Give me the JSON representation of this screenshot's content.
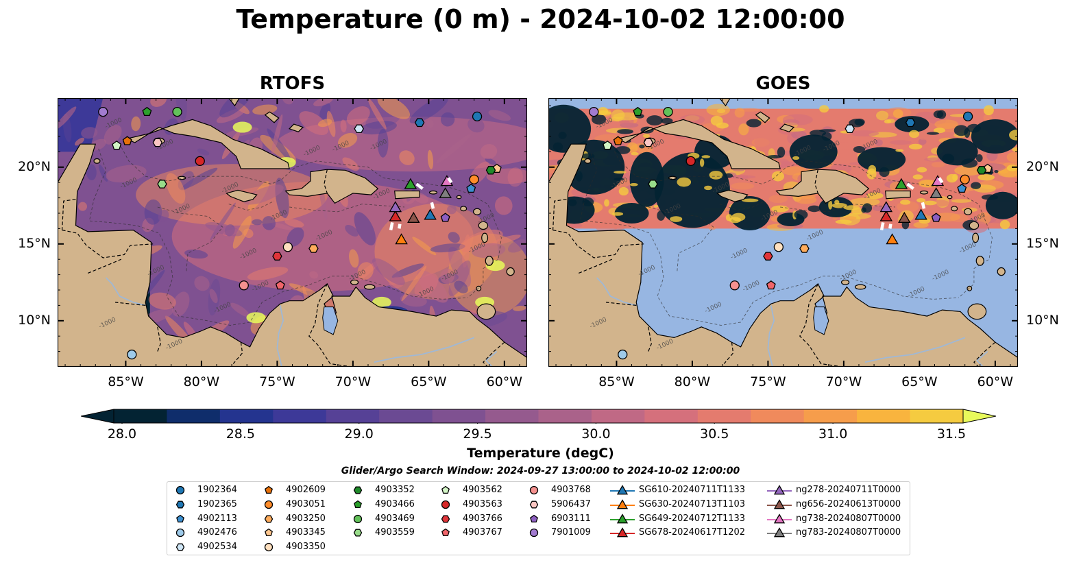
{
  "title": "Temperature (0 m) - 2024-10-02 12:00:00",
  "panels": [
    {
      "title": "RTOFS"
    },
    {
      "title": "GOES"
    }
  ],
  "map": {
    "lon_range": [
      -89.5,
      -58.5
    ],
    "lat_range": [
      7,
      24.5
    ],
    "lon_ticks": [
      "85°W",
      "80°W",
      "75°W",
      "70°W",
      "65°W",
      "60°W"
    ],
    "lat_ticks": [
      "20°N",
      "15°N",
      "10°N"
    ],
    "colors": {
      "land": "#d2b48c",
      "nodata": "#97b6e2",
      "river": "#9fb8d6",
      "border": "#000000"
    },
    "contour_label": "-1000",
    "goes_data_lat_range": [
      16,
      23.8
    ]
  },
  "colorbar": {
    "label": "Temperature (degC)",
    "range": [
      28.0,
      31.5
    ],
    "ticks": [
      "28.0",
      "28.5",
      "29.0",
      "29.5",
      "30.0",
      "30.5",
      "31.0",
      "31.5"
    ],
    "colors": [
      "#032333",
      "#0f2d6b",
      "#24348f",
      "#3d3998",
      "#564196",
      "#6b4a93",
      "#7f5191",
      "#955a8e",
      "#aa628a",
      "#c06985",
      "#d5707c",
      "#e47b6e",
      "#f08a5c",
      "#f69d4b",
      "#f9b43e",
      "#f5cb40",
      "#e8fa5b"
    ]
  },
  "search_window": "Glider/Argo Search Window: 2024-09-27 13:00:00 to 2024-10-02 12:00:00",
  "legend": {
    "columns": [
      [
        {
          "label": "1902364",
          "marker": "circle",
          "color": "#1f77b4"
        },
        {
          "label": "1902365",
          "marker": "hexagon",
          "color": "#1f77b4"
        },
        {
          "label": "4902113",
          "marker": "pentagon",
          "color": "#3c8fd0"
        },
        {
          "label": "4902476",
          "marker": "circle",
          "color": "#9ecae9"
        },
        {
          "label": "4902534",
          "marker": "hexagon",
          "color": "#cfe6f6"
        }
      ],
      [
        {
          "label": "4902609",
          "marker": "pentagon",
          "color": "#e8710a"
        },
        {
          "label": "4903051",
          "marker": "circle",
          "color": "#ff8c2a"
        },
        {
          "label": "4903250",
          "marker": "hexagon",
          "color": "#ffac5c"
        },
        {
          "label": "4903345",
          "marker": "pentagon",
          "color": "#ffc78f"
        },
        {
          "label": "4903350",
          "marker": "circle",
          "color": "#ffe0bf"
        }
      ],
      [
        {
          "label": "4903352",
          "marker": "hexagon",
          "color": "#1f8a2a"
        },
        {
          "label": "4903466",
          "marker": "pentagon",
          "color": "#2ca02c"
        },
        {
          "label": "4903469",
          "marker": "circle",
          "color": "#63c15a"
        },
        {
          "label": "4903559",
          "marker": "hexagon",
          "color": "#98dc8a"
        }
      ],
      [
        {
          "label": "4903562",
          "marker": "pentagon",
          "color": "#d3f5c6"
        },
        {
          "label": "4903563",
          "marker": "circle",
          "color": "#d62728"
        },
        {
          "label": "4903766",
          "marker": "hexagon",
          "color": "#e0353a"
        },
        {
          "label": "4903767",
          "marker": "pentagon",
          "color": "#f0656a"
        }
      ],
      [
        {
          "label": "4903768",
          "marker": "circle",
          "color": "#f5918f"
        },
        {
          "label": "5906437",
          "marker": "hexagon",
          "color": "#fbc6c2"
        },
        {
          "label": "6903111",
          "marker": "pentagon",
          "color": "#8c5ec0"
        },
        {
          "label": "7901009",
          "marker": "circle",
          "color": "#a27bd0"
        }
      ],
      [
        {
          "label": "SG610-20240711T1133",
          "marker": "triangle",
          "color": "#1f77b4"
        },
        {
          "label": "SG630-20240713T1103",
          "marker": "triangle",
          "color": "#ff7f0e"
        },
        {
          "label": "SG649-20240712T1133",
          "marker": "triangle",
          "color": "#2ca02c"
        },
        {
          "label": "SG678-20240617T1202",
          "marker": "triangle",
          "color": "#d62728"
        }
      ],
      [
        {
          "label": "ng278-20240711T0000",
          "marker": "triangle",
          "color": "#9467bd"
        },
        {
          "label": "ng656-20240613T0000",
          "marker": "triangle",
          "color": "#8c564b"
        },
        {
          "label": "ng738-20240807T0000",
          "marker": "triangle",
          "color": "#e377c2"
        },
        {
          "label": "ng783-20240807T0000",
          "marker": "triangle",
          "color": "#7f7f7f"
        }
      ]
    ]
  },
  "floats": [
    {
      "id": "1902364",
      "lon": -61.8,
      "lat": 23.3
    },
    {
      "id": "1902365",
      "lon": -65.6,
      "lat": 22.9
    },
    {
      "id": "4902113",
      "lon": -62.2,
      "lat": 18.6
    },
    {
      "id": "4902476",
      "lon": -84.6,
      "lat": 7.8
    },
    {
      "id": "4902534",
      "lon": -69.6,
      "lat": 22.5
    },
    {
      "id": "4902609",
      "lon": -84.9,
      "lat": 21.7
    },
    {
      "id": "4903051",
      "lon": -62.0,
      "lat": 19.2
    },
    {
      "id": "4903250",
      "lon": -72.6,
      "lat": 14.7
    },
    {
      "id": "4903345",
      "lon": -60.5,
      "lat": 19.9
    },
    {
      "id": "4903350",
      "lon": -74.3,
      "lat": 14.8
    },
    {
      "id": "4903352",
      "lon": -60.9,
      "lat": 19.8
    },
    {
      "id": "4903466",
      "lon": -83.6,
      "lat": 23.6
    },
    {
      "id": "4903469",
      "lon": -81.6,
      "lat": 23.6
    },
    {
      "id": "4903559",
      "lon": -82.6,
      "lat": 18.9
    },
    {
      "id": "4903562",
      "lon": -85.6,
      "lat": 21.4
    },
    {
      "id": "4903563",
      "lon": -80.1,
      "lat": 20.4
    },
    {
      "id": "4903766",
      "lon": -75.0,
      "lat": 14.2
    },
    {
      "id": "4903767",
      "lon": -74.8,
      "lat": 12.3
    },
    {
      "id": "4903768",
      "lon": -77.2,
      "lat": 12.3
    },
    {
      "id": "5906437",
      "lon": -82.9,
      "lat": 21.6
    },
    {
      "id": "6903111",
      "lon": -63.9,
      "lat": 16.7
    },
    {
      "id": "7901009",
      "lon": -86.5,
      "lat": 23.6
    }
  ],
  "gliders": [
    {
      "id": "SG610-20240711T1133",
      "lon": -64.9,
      "lat": 16.9
    },
    {
      "id": "SG630-20240713T1103",
      "lon": -66.8,
      "lat": 15.3
    },
    {
      "id": "SG649-20240712T1133",
      "lon": -66.2,
      "lat": 18.9
    },
    {
      "id": "SG678-20240617T1202",
      "lon": -67.2,
      "lat": 16.8
    },
    {
      "id": "ng278-20240711T0000",
      "lon": -67.2,
      "lat": 17.4
    },
    {
      "id": "ng656-20240613T0000",
      "lon": -66.0,
      "lat": 16.7
    },
    {
      "id": "ng738-20240807T0000",
      "lon": -63.8,
      "lat": 19.1
    },
    {
      "id": "ng783-20240807T0000",
      "lon": -63.9,
      "lat": 18.3
    }
  ]
}
